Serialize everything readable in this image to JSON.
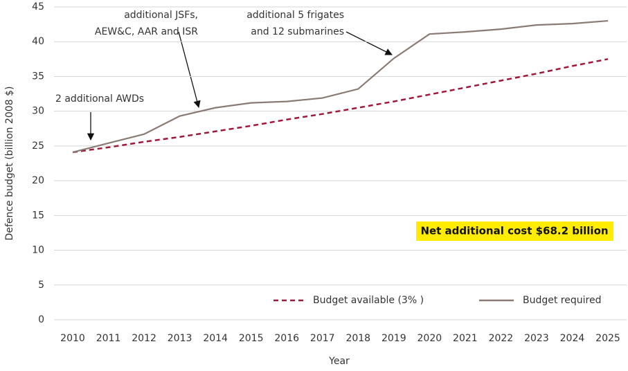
{
  "chart_data": {
    "type": "line",
    "y_label": "Defence budget (billion 2008 $)",
    "x_label": "Year",
    "categories": [
      "2010",
      "2011",
      "2012",
      "2013",
      "2014",
      "2015",
      "2016",
      "2017",
      "2018",
      "2019",
      "2020",
      "2021",
      "2022",
      "2023",
      "2024",
      "2025"
    ],
    "series": [
      {
        "name": "Budget available (3% )",
        "color": "#a0173a",
        "dashed": true,
        "values": [
          24.1,
          24.8,
          25.6,
          26.3,
          27.1,
          27.9,
          28.8,
          29.6,
          30.5,
          31.4,
          32.4,
          33.4,
          34.4,
          35.4,
          36.5,
          37.5
        ]
      },
      {
        "name": "Budget required",
        "color": "#8a7a74",
        "dashed": false,
        "values": [
          24.1,
          25.4,
          26.7,
          29.3,
          30.5,
          31.2,
          31.4,
          31.9,
          33.2,
          37.6,
          41.1,
          41.4,
          41.8,
          42.4,
          42.6,
          43.0
        ]
      }
    ],
    "ylim": [
      0,
      45
    ],
    "yticks": [
      0,
      5,
      10,
      15,
      20,
      25,
      30,
      35,
      40,
      45
    ],
    "grid": true,
    "legend": "bottom-right",
    "annotations": [
      {
        "lines": [
          "2 additional AWDs"
        ]
      },
      {
        "lines": [
          "additional JSFs,",
          "AEW&C, AAR and ISR"
        ]
      },
      {
        "lines": [
          "additional 5 frigates",
          "and 12 submarines"
        ]
      }
    ],
    "highlight": "Net additional cost $68.2 billion"
  }
}
